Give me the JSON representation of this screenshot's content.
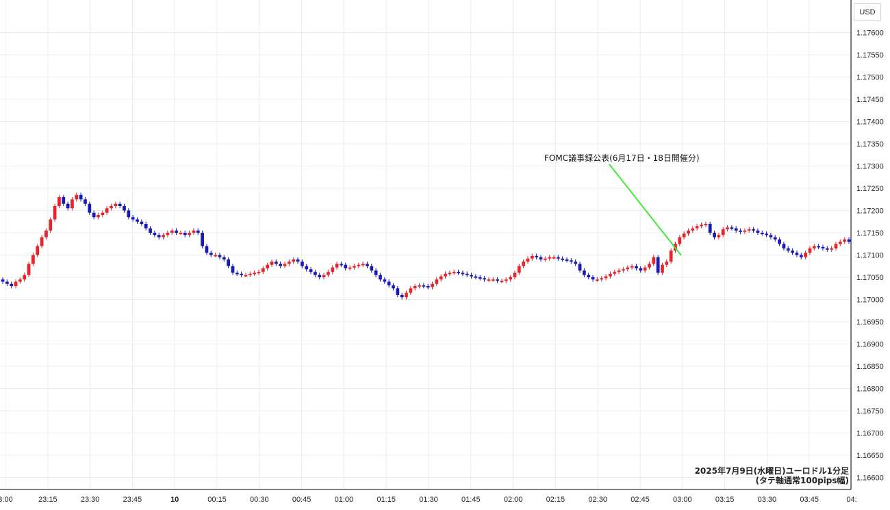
{
  "currency": "USD",
  "annotation": "FOMC議事録公表(6月17日・18日開催分)",
  "footer": {
    "line1": "2025年7月9日(水曜日)ユーロドル1分足",
    "line2": "(タテ軸通常100pips幅)"
  },
  "chart_data": {
    "type": "candlestick",
    "title": "",
    "y_ticks": [
      "1.17600",
      "1.17550",
      "1.17500",
      "1.17450",
      "1.17400",
      "1.17350",
      "1.17300",
      "1.17250",
      "1.17200",
      "1.17150",
      "1.17100",
      "1.17050",
      "1.17000",
      "1.16950",
      "1.16900",
      "1.16850",
      "1.16800",
      "1.16750",
      "1.16700",
      "1.16650",
      "1.16600"
    ],
    "ylim": [
      1.16595,
      1.17625
    ],
    "x_ticks": [
      "3:00",
      "23:15",
      "23:30",
      "23:45",
      "10",
      "00:15",
      "00:30",
      "00:45",
      "01:00",
      "01:15",
      "01:30",
      "01:45",
      "02:00",
      "02:15",
      "02:30",
      "02:45",
      "03:00",
      "03:15",
      "03:30",
      "03:45",
      "04:"
    ],
    "grid": true,
    "colors": {
      "up": "#e8252c",
      "down": "#1a1ab8",
      "annotation_line": "#44e83a",
      "grid": "#e9ecef"
    },
    "candles_1min": [
      1.1704,
      1.17035,
      1.1703,
      1.1704,
      1.17045,
      1.17055,
      1.1708,
      1.171,
      1.1712,
      1.1714,
      1.17155,
      1.1718,
      1.1721,
      1.1723,
      1.17215,
      1.17205,
      1.17225,
      1.17235,
      1.17225,
      1.17215,
      1.17195,
      1.17185,
      1.1719,
      1.17195,
      1.17205,
      1.1721,
      1.17215,
      1.1721,
      1.172,
      1.17185,
      1.1718,
      1.17175,
      1.1717,
      1.1716,
      1.1715,
      1.17145,
      1.1714,
      1.17145,
      1.1715,
      1.17155,
      1.1715,
      1.1715,
      1.17145,
      1.1715,
      1.17155,
      1.1715,
      1.1712,
      1.17105,
      1.171,
      1.171,
      1.17095,
      1.1709,
      1.17075,
      1.1706,
      1.17058,
      1.17055,
      1.17055,
      1.17058,
      1.1706,
      1.17062,
      1.1707,
      1.17078,
      1.17085,
      1.1708,
      1.17075,
      1.1708,
      1.17085,
      1.1709,
      1.17085,
      1.17075,
      1.17068,
      1.17062,
      1.17055,
      1.1705,
      1.17055,
      1.17062,
      1.17072,
      1.1708,
      1.17078,
      1.1707,
      1.17072,
      1.17075,
      1.17078,
      1.1708,
      1.17075,
      1.17065,
      1.17055,
      1.17045,
      1.1704,
      1.17032,
      1.17025,
      1.1701,
      1.17005,
      1.17015,
      1.17025,
      1.1703,
      1.17032,
      1.1703,
      1.17028,
      1.17035,
      1.17045,
      1.17052,
      1.17058,
      1.1706,
      1.17062,
      1.1706,
      1.17058,
      1.17055,
      1.17052,
      1.1705,
      1.17048,
      1.17045,
      1.17045,
      1.17045,
      1.17042,
      1.17042,
      1.17045,
      1.1705,
      1.1706,
      1.17075,
      1.17085,
      1.17092,
      1.17098,
      1.17095,
      1.1709,
      1.17092,
      1.17095,
      1.17095,
      1.17092,
      1.1709,
      1.17088,
      1.17085,
      1.1708,
      1.17065,
      1.17055,
      1.1705,
      1.17045,
      1.17045,
      1.17048,
      1.17052,
      1.17058,
      1.17062,
      1.17065,
      1.17068,
      1.17072,
      1.17075,
      1.1707,
      1.17065,
      1.17072,
      1.1708,
      1.17095,
      1.1706,
      1.17078,
      1.17085,
      1.1711,
      1.17125,
      1.1714,
      1.17148,
      1.17155,
      1.1716,
      1.17165,
      1.17168,
      1.1717,
      1.1715,
      1.1714,
      1.17145,
      1.17158,
      1.17162,
      1.1716,
      1.17155,
      1.17152,
      1.17155,
      1.17158,
      1.17155,
      1.1715,
      1.17148,
      1.17145,
      1.1714,
      1.17135,
      1.17125,
      1.17115,
      1.1711,
      1.17105,
      1.171,
      1.17095,
      1.17105,
      1.17115,
      1.1712,
      1.17118,
      1.17115,
      1.17112,
      1.17115,
      1.17125,
      1.1713,
      1.17135,
      1.1713
    ]
  }
}
